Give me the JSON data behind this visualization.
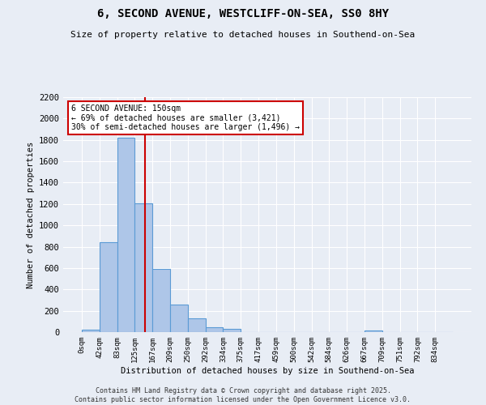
{
  "title": "6, SECOND AVENUE, WESTCLIFF-ON-SEA, SS0 8HY",
  "subtitle": "Size of property relative to detached houses in Southend-on-Sea",
  "xlabel": "Distribution of detached houses by size in Southend-on-Sea",
  "ylabel": "Number of detached properties",
  "bin_labels": [
    "0sqm",
    "42sqm",
    "83sqm",
    "125sqm",
    "167sqm",
    "209sqm",
    "250sqm",
    "292sqm",
    "334sqm",
    "375sqm",
    "417sqm",
    "459sqm",
    "500sqm",
    "542sqm",
    "584sqm",
    "626sqm",
    "667sqm",
    "709sqm",
    "751sqm",
    "792sqm",
    "834sqm"
  ],
  "bar_heights": [
    25,
    840,
    1820,
    1210,
    595,
    255,
    130,
    45,
    30,
    0,
    0,
    0,
    0,
    0,
    0,
    0,
    15,
    0,
    0,
    0,
    0
  ],
  "bar_color": "#aec6e8",
  "bar_edge_color": "#5b9bd5",
  "red_line_color": "#cc0000",
  "annotation_text": "6 SECOND AVENUE: 150sqm\n← 69% of detached houses are smaller (3,421)\n30% of semi-detached houses are larger (1,496) →",
  "annotation_box_color": "#ffffff",
  "annotation_box_edge": "#cc0000",
  "ylim": [
    0,
    2200
  ],
  "yticks": [
    0,
    200,
    400,
    600,
    800,
    1000,
    1200,
    1400,
    1600,
    1800,
    2000,
    2200
  ],
  "bg_color": "#e8edf5",
  "grid_color": "#ffffff",
  "footer_line1": "Contains HM Land Registry data © Crown copyright and database right 2025.",
  "footer_line2": "Contains public sector information licensed under the Open Government Licence v3.0."
}
